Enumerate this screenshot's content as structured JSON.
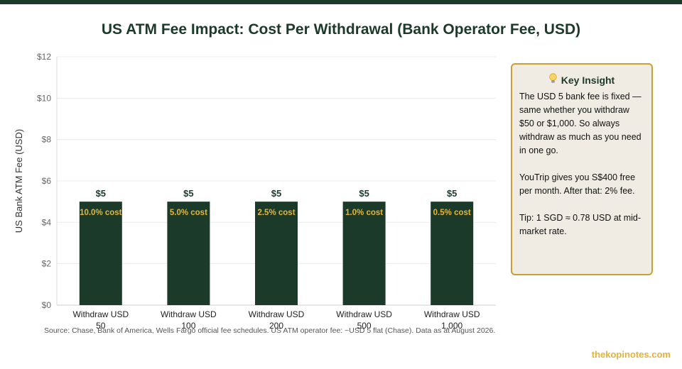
{
  "title": "US ATM Fee Impact: Cost Per Withdrawal (Bank Operator Fee, USD)",
  "chart_data": {
    "type": "bar",
    "categories": [
      "Withdraw USD 50",
      "Withdraw USD 100",
      "Withdraw USD 200",
      "Withdraw USD 500",
      "Withdraw USD 1,000"
    ],
    "category_lines": [
      [
        "Withdraw USD",
        "50"
      ],
      [
        "Withdraw USD",
        "100"
      ],
      [
        "Withdraw USD",
        "200"
      ],
      [
        "Withdraw USD",
        "500"
      ],
      [
        "Withdraw USD",
        "1,000"
      ]
    ],
    "values": [
      5,
      5,
      5,
      5,
      5
    ],
    "value_labels": [
      "$5",
      "$5",
      "$5",
      "$5",
      "$5"
    ],
    "cost_labels": [
      "10.0% cost",
      "5.0% cost",
      "2.5% cost",
      "1.0% cost",
      "0.5% cost"
    ],
    "ylabel": "US Bank ATM Fee (USD)",
    "ylim": [
      0,
      12
    ],
    "yticks": [
      0,
      2,
      4,
      6,
      8,
      10,
      12
    ],
    "ytick_labels": [
      "$0",
      "$2",
      "$4",
      "$6",
      "$8",
      "$10",
      "$12"
    ],
    "grid": true,
    "bar_color": "#1c3a2a",
    "cost_label_color": "#e8b530"
  },
  "insight": {
    "heading": "Key Insight",
    "icon": "lightbulb-icon",
    "paragraphs": [
      "The USD 5 bank fee is fixed — same whether you withdraw $50 or $1,000. So always withdraw as much as you need in one go.",
      "YouTrip gives you S$400 free per month. After that: 2% fee.",
      "Tip: 1 SGD ≈ 0.78 USD at mid-market rate."
    ]
  },
  "source": "Source: Chase, Bank of America, Wells Fargo official fee schedules. US ATM operator fee: ~USD 5 flat (Chase). Data as at August 2026.",
  "brand": "thekopinotes.com",
  "colors": {
    "accent": "#1c3a2a",
    "gold": "#e3b23c",
    "panel_bg": "#f0ece3"
  }
}
